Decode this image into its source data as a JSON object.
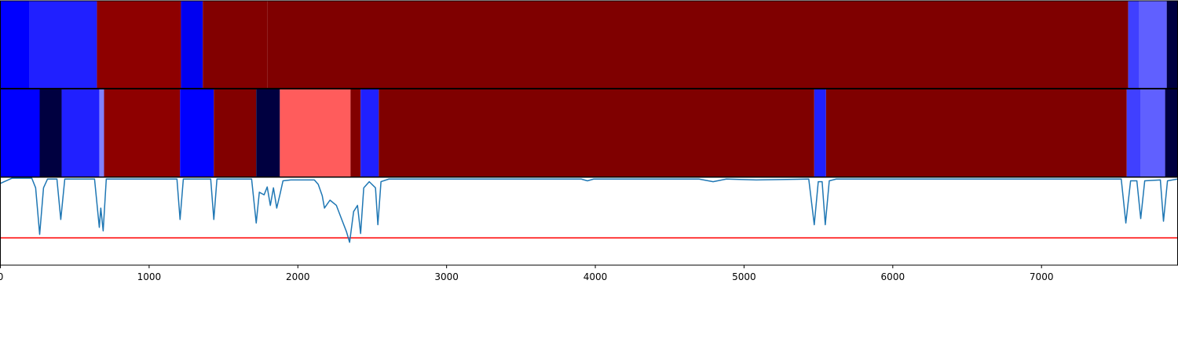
{
  "chart_data": {
    "type": "line",
    "xlim": [
      0,
      7915
    ],
    "xticks": [
      0,
      1000,
      2000,
      3000,
      4000,
      5000,
      6000,
      7000
    ],
    "ylim": [
      0,
      1
    ],
    "bands": [
      {
        "segments": [
          {
            "start": 0,
            "end": 195,
            "color": "#0000ff"
          },
          {
            "start": 195,
            "end": 649,
            "color": "#2020ff"
          },
          {
            "start": 649,
            "end": 1214,
            "color": "#8e0000"
          },
          {
            "start": 1214,
            "end": 1361,
            "color": "#0000f0"
          },
          {
            "start": 1361,
            "end": 1794,
            "color": "#820000"
          },
          {
            "start": 1794,
            "end": 7583,
            "color": "#7f0000"
          },
          {
            "start": 7583,
            "end": 7657,
            "color": "#4040ff"
          },
          {
            "start": 7657,
            "end": 7842,
            "color": "#6060ff"
          },
          {
            "start": 7842,
            "end": 7915,
            "color": "#000040"
          }
        ]
      },
      {
        "segments": [
          {
            "start": 0,
            "end": 264,
            "color": "#0000ff"
          },
          {
            "start": 264,
            "end": 412,
            "color": "#000040"
          },
          {
            "start": 412,
            "end": 665,
            "color": "#2020ff"
          },
          {
            "start": 665,
            "end": 697,
            "color": "#8080ff"
          },
          {
            "start": 697,
            "end": 1208,
            "color": "#8e0000"
          },
          {
            "start": 1208,
            "end": 1435,
            "color": "#0000ff"
          },
          {
            "start": 1435,
            "end": 1720,
            "color": "#820000"
          },
          {
            "start": 1720,
            "end": 1879,
            "color": "#000040"
          },
          {
            "start": 1879,
            "end": 2354,
            "color": "#ff5c5c"
          },
          {
            "start": 2354,
            "end": 2422,
            "color": "#820000"
          },
          {
            "start": 2422,
            "end": 2544,
            "color": "#2020ff"
          },
          {
            "start": 2544,
            "end": 5472,
            "color": "#7f0000"
          },
          {
            "start": 5472,
            "end": 5551,
            "color": "#2020ff"
          },
          {
            "start": 5551,
            "end": 7573,
            "color": "#7f0000"
          },
          {
            "start": 7573,
            "end": 7668,
            "color": "#4040ff"
          },
          {
            "start": 7668,
            "end": 7831,
            "color": "#6060ff"
          },
          {
            "start": 7831,
            "end": 7915,
            "color": "#000040"
          }
        ]
      }
    ],
    "x": [
      0,
      26,
      53,
      79,
      211,
      237,
      264,
      290,
      317,
      380,
      406,
      433,
      633,
      665,
      675,
      691,
      712,
      1187,
      1208,
      1230,
      1414,
      1435,
      1456,
      1689,
      1720,
      1741,
      1773,
      1794,
      1815,
      1836,
      1858,
      1879,
      1900,
      1952,
      2111,
      2137,
      2164,
      2179,
      2216,
      2259,
      2295,
      2327,
      2348,
      2375,
      2401,
      2422,
      2443,
      2480,
      2522,
      2538,
      2559,
      2612,
      3905,
      3947,
      3989,
      4697,
      4792,
      4881,
      5082,
      5435,
      5472,
      5499,
      5525,
      5546,
      5573,
      5620,
      7536,
      7567,
      7599,
      7641,
      7667,
      7694,
      7799,
      7820,
      7847,
      7915
    ],
    "series": [
      {
        "color": "#1f77b4",
        "values": [
          0.93,
          0.95,
          0.97,
          0.99,
          0.99,
          0.88,
          0.35,
          0.88,
          0.98,
          0.98,
          0.52,
          0.98,
          0.98,
          0.43,
          0.65,
          0.39,
          0.98,
          0.98,
          0.52,
          0.98,
          0.98,
          0.52,
          0.98,
          0.98,
          0.48,
          0.83,
          0.8,
          0.89,
          0.68,
          0.88,
          0.65,
          0.8,
          0.96,
          0.97,
          0.97,
          0.92,
          0.79,
          0.65,
          0.74,
          0.68,
          0.52,
          0.38,
          0.26,
          0.61,
          0.68,
          0.36,
          0.88,
          0.95,
          0.88,
          0.46,
          0.95,
          0.98,
          0.98,
          0.96,
          0.98,
          0.98,
          0.95,
          0.98,
          0.97,
          0.98,
          0.46,
          0.95,
          0.95,
          0.46,
          0.96,
          0.98,
          0.98,
          0.48,
          0.96,
          0.96,
          0.53,
          0.96,
          0.97,
          0.5,
          0.96,
          0.98
        ]
      }
    ],
    "threshold": 0.31,
    "threshold_color": "#ff0000"
  }
}
